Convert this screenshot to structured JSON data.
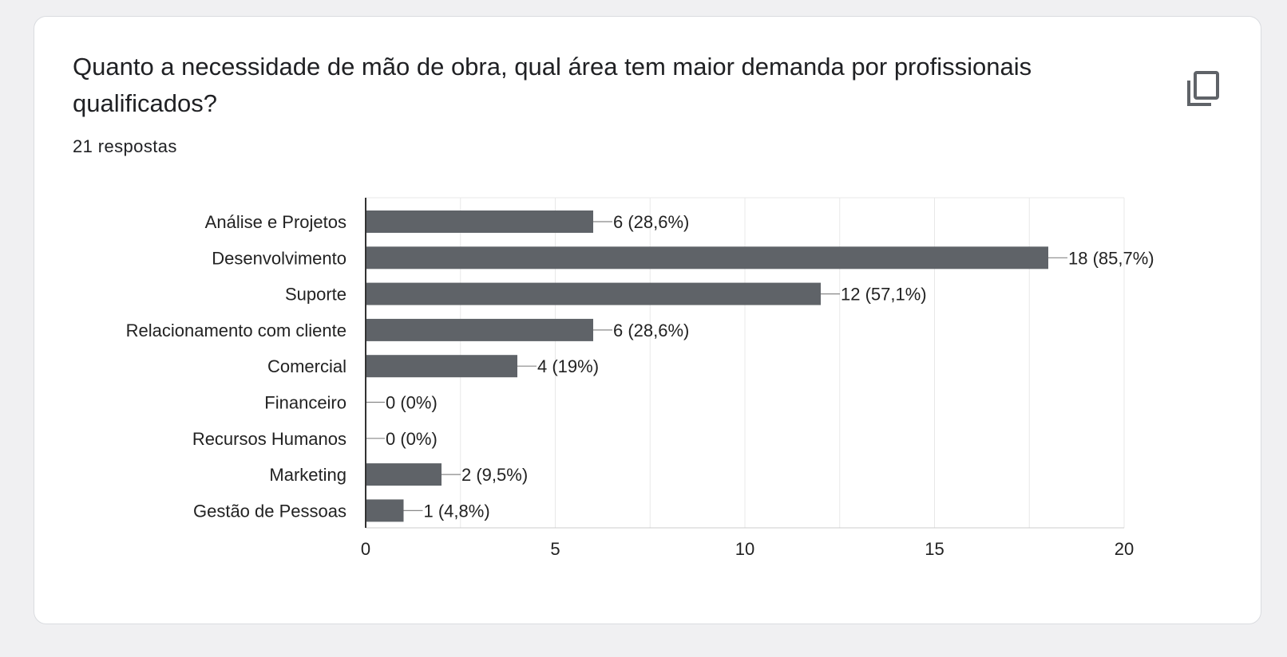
{
  "question": {
    "title": "Quanto a necessidade de mão de obra, qual área tem maior demanda por profissionais qualificados?",
    "responses": "21 respostas"
  },
  "icons": {
    "copy": "copy-icon"
  },
  "colors": {
    "bar": "#5f6368",
    "grid": "#e8e8e8",
    "axis": "#333333",
    "text": "#222222"
  },
  "chart_data": {
    "type": "bar",
    "orientation": "horizontal",
    "categories": [
      "Análise e Projetos",
      "Desenvolvimento",
      "Suporte",
      "Relacionamento com cliente",
      "Comercial",
      "Financeiro",
      "Recursos Humanos",
      "Marketing",
      "Gestão de Pessoas"
    ],
    "values": [
      6,
      18,
      12,
      6,
      4,
      0,
      0,
      2,
      1
    ],
    "data_labels": [
      "6 (28,6%)",
      "18 (85,7%)",
      "12 (57,1%)",
      "6 (28,6%)",
      "4 (19%)",
      "0 (0%)",
      "0 (0%)",
      "2 (9,5%)",
      "1 (4,8%)"
    ],
    "xlim": [
      0,
      20
    ],
    "xticks": [
      0,
      5,
      10,
      15,
      20
    ],
    "grid": true
  }
}
